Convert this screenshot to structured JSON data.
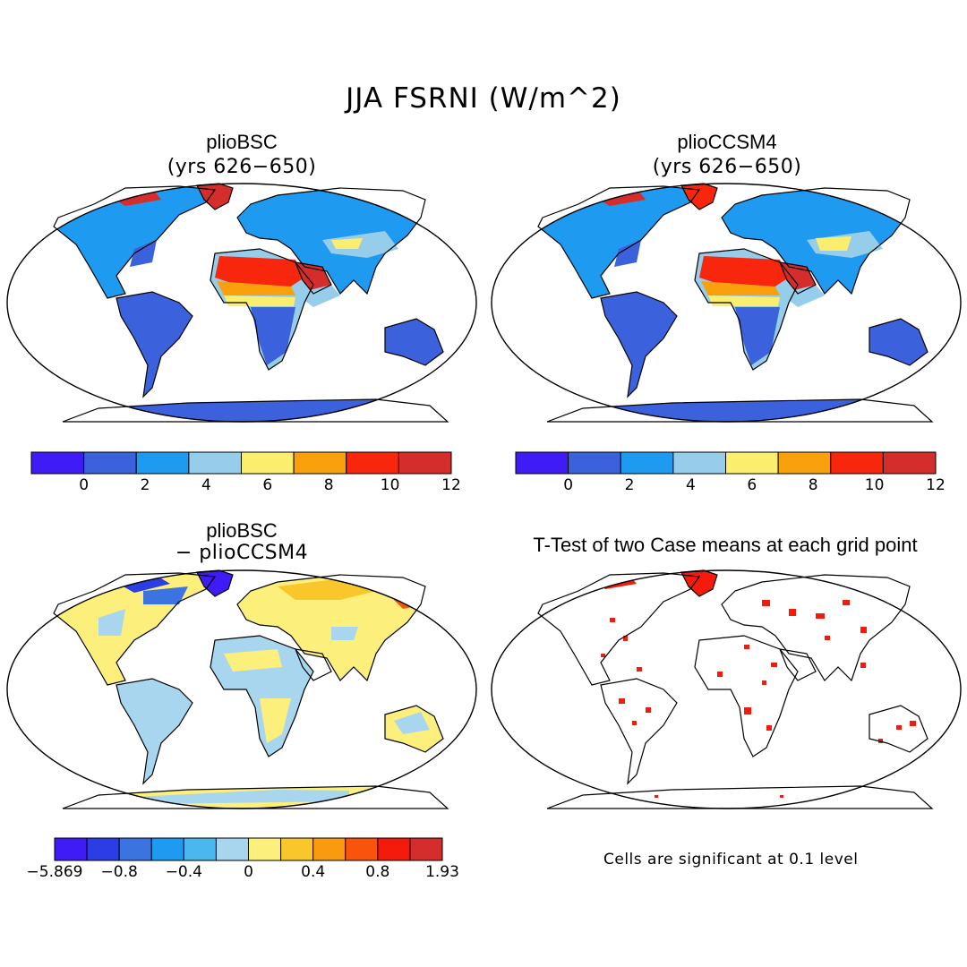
{
  "title": "JJA FSRNI (W/m^2)",
  "panels": [
    {
      "title": "plioBSC",
      "subtitle": "(yrs 626−650)"
    },
    {
      "title": "plioCCSM4",
      "subtitle": "(yrs 626−650)"
    },
    {
      "title": "plioBSC",
      "subtitle": "− plioCCSM4"
    },
    {
      "title": "T-Test of two Case means at each grid point",
      "subtitle": ""
    }
  ],
  "colorbars": {
    "abs": {
      "colors": [
        "#3f1cf5",
        "#3b62dc",
        "#1e9af0",
        "#96cdea",
        "#fbee6f",
        "#f9a00d",
        "#f8260c",
        "#d52c2c"
      ],
      "labels": [
        "0",
        "2",
        "4",
        "6",
        "8",
        "10",
        "12"
      ]
    },
    "diff": {
      "colors": [
        "#3f1cf5",
        "#2b3ee6",
        "#3b73e0",
        "#1e9af0",
        "#4ab8ef",
        "#a8d6ee",
        "#fcef7c",
        "#f9c72b",
        "#f99a0f",
        "#f8540c",
        "#f41a0c",
        "#d52c2c"
      ],
      "labels": [
        "−5.869",
        "−0.8",
        "−0.4",
        "0",
        "0.4",
        "0.8",
        "1.93"
      ]
    }
  },
  "note": "Cells are significant at 0.1 level"
}
